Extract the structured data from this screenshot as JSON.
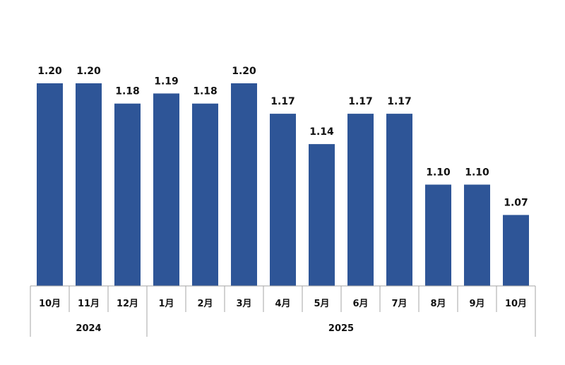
{
  "chart_data": {
    "type": "bar",
    "title": "",
    "xlabel": "",
    "ylabel": "",
    "categories": [
      "10月",
      "11月",
      "12月",
      "1月",
      "2月",
      "3月",
      "4月",
      "5月",
      "6月",
      "7月",
      "8月",
      "9月",
      "10月"
    ],
    "groups": [
      {
        "label": "2024",
        "count": 3
      },
      {
        "label": "2025",
        "count": 10
      }
    ],
    "values": [
      1.2,
      1.2,
      1.18,
      1.19,
      1.18,
      1.2,
      1.17,
      1.14,
      1.17,
      1.17,
      1.1,
      1.1,
      1.07
    ],
    "value_labels": [
      "1.20",
      "1.20",
      "1.18",
      "1.19",
      "1.18",
      "1.20",
      "1.17",
      "1.14",
      "1.17",
      "1.17",
      "1.10",
      "1.10",
      "1.07"
    ],
    "ylim": [
      1.0,
      1.2
    ],
    "bar_color": "#2E5597",
    "axis_color": "#A6A6A6",
    "grid": false,
    "legend": "none"
  }
}
